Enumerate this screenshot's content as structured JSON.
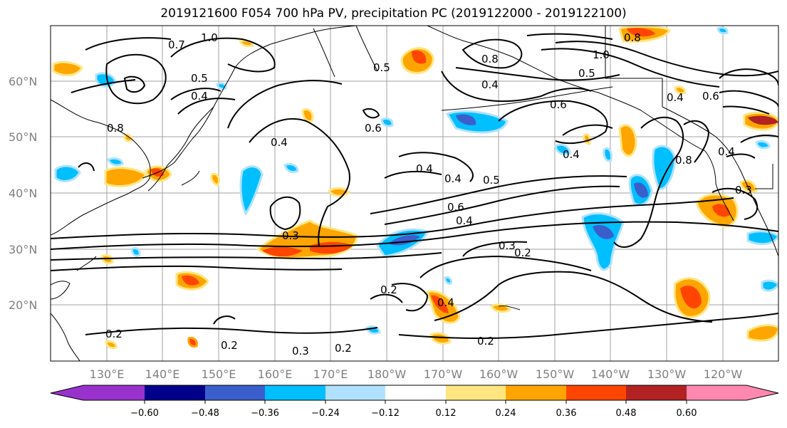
{
  "title": "2019121600 F054 700 hPa PV, precipitation PC (2019122000 - 2019122100)",
  "lat_labels": [
    "60°N",
    "50°N",
    "40°N",
    "30°N",
    "20°N"
  ],
  "lon_labels": [
    "130°E",
    "140°E",
    "150°E",
    "160°E",
    "170°E",
    "180°W",
    "170°W",
    "160°W",
    "150°W",
    "140°W",
    "130°W",
    "120°W"
  ],
  "colorbar": {
    "ticks": [
      "−0.60",
      "−0.48",
      "−0.36",
      "−0.24",
      "−0.12",
      "0.12",
      "0.24",
      "0.36",
      "0.48",
      "0.60"
    ],
    "colors": [
      "#9932cc",
      "#00008b",
      "#3a5fcd",
      "#00bfff",
      "#b0e2ff",
      "#ffffff",
      "#ffe680",
      "#ffa500",
      "#ff4500",
      "#b22222",
      "#ff88b0"
    ]
  },
  "contour_labels": [
    "1.0",
    "0.7",
    "0.5",
    "0.4",
    "0.6",
    "0.4",
    "0.4",
    "0.4",
    "0.5",
    "0.6",
    "0.4",
    "0.3",
    "0.2",
    "0.3",
    "0.2",
    "0.4",
    "0.2",
    "0.2",
    "0.3",
    "0.2",
    "0.2",
    "0.8",
    "0.8",
    "0.5",
    "0.6",
    "0.6",
    "0.4",
    "0.8",
    "0.4",
    "0.4",
    "0.4",
    "0.3",
    "0.5",
    "0.8",
    "1.0"
  ],
  "colors": {
    "contour": "#000000",
    "grid": "#a0a0a0",
    "coast": "#000000"
  }
}
